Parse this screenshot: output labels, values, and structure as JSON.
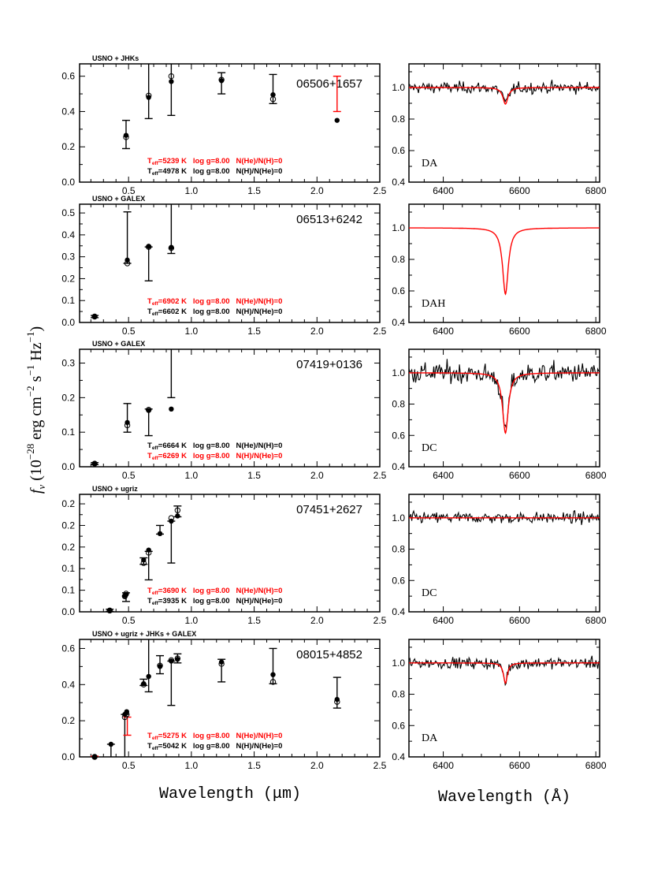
{
  "chart_data": {
    "type": "scatter",
    "colors": {
      "primary": "#000000",
      "highlight": "#ff0000"
    },
    "ylabel": {
      "f": "f",
      "nu": "ν",
      "text": "(10",
      "exp": "−28",
      "units": "erg cm",
      "cm_exp": "−2",
      "s": "s",
      "s_exp": "−1",
      "hz": "Hz",
      "hz_exp": "−1",
      "close": ")"
    },
    "sed_xlabel": "Wavelength (μm)",
    "spec_xlabel": "Wavelength (Å)",
    "sed_xlim": [
      0.11,
      2.5
    ],
    "sed_xticks": [
      "0.5",
      "1.0",
      "1.5",
      "2.0",
      "2.5"
    ],
    "sed_xtick_values": [
      0.5,
      1.0,
      1.5,
      2.0,
      2.5
    ],
    "spec_xlim": [
      6310,
      6810
    ],
    "spec_ylim": [
      0.4,
      1.15
    ],
    "spec_xticks": [
      "6400",
      "6600",
      "6800"
    ],
    "spec_xtick_values": [
      6400,
      6600,
      6800
    ],
    "spec_yticks": [
      "0.4",
      "0.6",
      "0.8",
      "1.0"
    ],
    "spec_ytick_values": [
      0.4,
      0.6,
      0.8,
      1.0
    ],
    "panels": [
      {
        "photometry": "USNO + JHKs",
        "object": "06506+1657",
        "ylim": [
          0,
          0.67
        ],
        "yticks": [
          "0.0",
          "0.2",
          "0.4",
          "0.6"
        ],
        "ytick_values": [
          0,
          0.2,
          0.4,
          0.6
        ],
        "fits": [
          {
            "teff_label": "T",
            "sub": "eff",
            "text": "=5239 K  log g=8.00  N(He)/N(H)=0",
            "color": "#ff0000"
          },
          {
            "teff_label": "T",
            "sub": "eff",
            "text": "=4978 K  log g=8.00  N(H)/N(He)=0",
            "color": "#000000"
          }
        ],
        "observed": [
          {
            "x": 0.48,
            "lo": 0.19,
            "hi": 0.35,
            "color": "#000000"
          },
          {
            "x": 0.66,
            "lo": 0.36,
            "hi": 0.67,
            "color": "#000000"
          },
          {
            "x": 0.84,
            "lo": 0.378,
            "hi": 0.67,
            "color": "#000000"
          },
          {
            "x": 1.24,
            "lo": 0.5,
            "hi": 0.62,
            "color": "#000000"
          },
          {
            "x": 1.65,
            "lo": 0.445,
            "hi": 0.61,
            "color": "#000000"
          },
          {
            "x": 2.16,
            "lo": 0.4,
            "hi": 0.6,
            "color": "#ff0000"
          }
        ],
        "model_filled": [
          [
            0.48,
            0.265
          ],
          [
            0.66,
            0.48
          ],
          [
            0.84,
            0.57
          ],
          [
            1.24,
            0.575
          ],
          [
            1.65,
            0.495
          ],
          [
            2.16,
            0.35
          ]
        ],
        "model_open": [
          [
            0.48,
            0.255
          ],
          [
            0.66,
            0.49
          ],
          [
            0.84,
            0.6
          ],
          [
            1.24,
            0.58
          ],
          [
            1.65,
            0.47
          ]
        ],
        "spectral_type": "DA",
        "spectrum": {
          "observed": true,
          "noise_rms": 0.03,
          "model_min": 0.895,
          "line_center": 6563,
          "line_width": 8
        }
      },
      {
        "photometry": "USNO + GALEX",
        "object": "06513+6242",
        "ylim": [
          0,
          0.54
        ],
        "yticks": [
          "0.0",
          "0.1",
          "0.2",
          "0.3",
          "0.4",
          "0.5"
        ],
        "ytick_values": [
          0,
          0.1,
          0.2,
          0.3,
          0.4,
          0.5
        ],
        "fits": [
          {
            "teff_label": "T",
            "sub": "eff",
            "text": "=6902 K  log g=8.00  N(He)/N(H)=0",
            "color": "#ff0000"
          },
          {
            "teff_label": "T",
            "sub": "eff",
            "text": "=6602 K  log g=8.00  N(H)/N(He)=0",
            "color": "#000000"
          }
        ],
        "observed": [
          {
            "x": 0.23,
            "lo": 0.022,
            "hi": 0.032,
            "color": "#000000"
          },
          {
            "x": 0.49,
            "lo": 0.27,
            "hi": 0.505,
            "color": "#000000"
          },
          {
            "x": 0.66,
            "lo": 0.19,
            "hi": 0.345,
            "color": "#000000"
          },
          {
            "x": 0.84,
            "lo": 0.315,
            "hi": 0.54,
            "color": "#000000"
          }
        ],
        "model_filled": [
          [
            0.23,
            0.027
          ],
          [
            0.49,
            0.285
          ],
          [
            0.66,
            0.348
          ],
          [
            0.84,
            0.343
          ]
        ],
        "model_open": [
          [
            0.23,
            0.027
          ],
          [
            0.49,
            0.27
          ],
          [
            0.66,
            0.345
          ],
          [
            0.84,
            0.34
          ]
        ],
        "spectral_type": "DAH",
        "spectrum": {
          "observed": false,
          "noise_rms": 0,
          "model_min": 0.58,
          "line_center": 6563,
          "line_width": 9
        }
      },
      {
        "photometry": "USNO + GALEX",
        "object": "07419+0136",
        "ylim": [
          0,
          0.34
        ],
        "yticks": [
          "0.0",
          "0.1",
          "0.2",
          "0.3"
        ],
        "ytick_values": [
          0,
          0.1,
          0.2,
          0.3
        ],
        "fits": [
          {
            "teff_label": "T",
            "sub": "eff",
            "text": "=6664 K  log g=8.00  N(He)/N(H)=0",
            "color": "#000000"
          },
          {
            "teff_label": "T",
            "sub": "eff",
            "text": "=6269 K  log g=8.00  N(H)/N(He)=0",
            "color": "#ff0000"
          }
        ],
        "observed": [
          {
            "x": 0.23,
            "lo": 0.006,
            "hi": 0.012,
            "color": "#000000"
          },
          {
            "x": 0.49,
            "lo": 0.1,
            "hi": 0.183,
            "color": "#000000"
          },
          {
            "x": 0.66,
            "lo": 0.09,
            "hi": 0.167,
            "color": "#000000"
          },
          {
            "x": 0.84,
            "lo": 0.2,
            "hi": 0.34,
            "color": "#000000"
          }
        ],
        "model_filled": [
          [
            0.23,
            0.009
          ],
          [
            0.49,
            0.128
          ],
          [
            0.66,
            0.163
          ],
          [
            0.84,
            0.167
          ]
        ],
        "model_open": [
          [
            0.23,
            0.009
          ],
          [
            0.49,
            0.12
          ],
          [
            0.66,
            0.165
          ]
        ],
        "spectral_type": "DC",
        "spectrum": {
          "observed": true,
          "noise_rms": 0.055,
          "model_min": 0.615,
          "line_center": 6563,
          "line_width": 9
        }
      },
      {
        "photometry": "USNO + ugriz",
        "object": "07451+2627",
        "ylim": [
          0,
          0.272
        ],
        "yticks": [
          "0.0",
          "0.1",
          "0.1",
          "0.2",
          "0.2",
          "0.2"
        ],
        "ytick_values": [
          0,
          0.05,
          0.1,
          0.15,
          0.2,
          0.25
        ],
        "fits": [
          {
            "teff_label": "T",
            "sub": "eff",
            "text": "=3690 K  log g=8.00  N(He)/N(H)=0",
            "color": "#ff0000"
          },
          {
            "teff_label": "T",
            "sub": "eff",
            "text": "=3935 K  log g=8.00  N(H)/N(He)=0",
            "color": "#000000"
          }
        ],
        "observed": [
          {
            "x": 0.35,
            "lo": 0.001,
            "hi": 0.006,
            "color": "#000000"
          },
          {
            "x": 0.48,
            "lo": 0.024,
            "hi": 0.044,
            "color": "#000000"
          },
          {
            "x": 0.62,
            "lo": 0.11,
            "hi": 0.125,
            "color": "#000000"
          },
          {
            "x": 0.66,
            "lo": 0.074,
            "hi": 0.14,
            "color": "#000000"
          },
          {
            "x": 0.75,
            "lo": 0.18,
            "hi": 0.2,
            "color": "#000000"
          },
          {
            "x": 0.84,
            "lo": 0.113,
            "hi": 0.21,
            "color": "#000000"
          },
          {
            "x": 0.89,
            "lo": 0.22,
            "hi": 0.245,
            "color": "#000000"
          }
        ],
        "model_filled": [
          [
            0.35,
            0.003
          ],
          [
            0.47,
            0.037
          ],
          [
            0.48,
            0.04
          ],
          [
            0.62,
            0.12
          ],
          [
            0.66,
            0.143
          ],
          [
            0.75,
            0.181
          ],
          [
            0.84,
            0.21
          ],
          [
            0.89,
            0.222
          ]
        ],
        "model_open": [
          [
            0.35,
            0.003
          ],
          [
            0.47,
            0.036
          ],
          [
            0.48,
            0.042
          ],
          [
            0.62,
            0.113
          ],
          [
            0.66,
            0.137
          ],
          [
            0.84,
            0.217
          ],
          [
            0.89,
            0.235
          ]
        ],
        "spectral_type": "DC",
        "spectrum": {
          "observed": true,
          "noise_rms": 0.03,
          "model_min": 1.0,
          "line_center": 6563,
          "line_width": 8
        }
      },
      {
        "photometry": "USNO + ugriz + JHKs + GALEX",
        "object": "08015+4852",
        "ylim": [
          0,
          0.65
        ],
        "yticks": [
          "0.0",
          "0.2",
          "0.4",
          "0.6"
        ],
        "ytick_values": [
          0,
          0.2,
          0.4,
          0.6
        ],
        "fits": [
          {
            "teff_label": "T",
            "sub": "eff",
            "text": "=5275 K  log g=8.00  N(He)/N(H)=0",
            "color": "#ff0000"
          },
          {
            "teff_label": "T",
            "sub": "eff",
            "text": "=5042 K  log g=8.00  N(H)/N(He)=0",
            "color": "#000000"
          }
        ],
        "observed": [
          {
            "x": 0.23,
            "lo": 0.0,
            "hi": 0.004,
            "color": "#ff0000"
          },
          {
            "x": 0.36,
            "lo": 0.0,
            "hi": 0.07,
            "color": "#000000"
          },
          {
            "x": 0.47,
            "lo": 0.0,
            "hi": 0.235,
            "color": "#000000"
          },
          {
            "x": 0.49,
            "lo": 0.12,
            "hi": 0.22,
            "color": "#ff0000"
          },
          {
            "x": 0.62,
            "lo": 0.395,
            "hi": 0.43,
            "color": "#000000"
          },
          {
            "x": 0.66,
            "lo": 0.36,
            "hi": 0.65,
            "color": "#000000"
          },
          {
            "x": 0.75,
            "lo": 0.46,
            "hi": 0.56,
            "color": "#000000"
          },
          {
            "x": 0.84,
            "lo": 0.285,
            "hi": 0.53,
            "color": "#000000"
          },
          {
            "x": 0.89,
            "lo": 0.52,
            "hi": 0.57,
            "color": "#000000"
          },
          {
            "x": 1.24,
            "lo": 0.415,
            "hi": 0.54,
            "color": "#000000"
          },
          {
            "x": 1.65,
            "lo": 0.405,
            "hi": 0.6,
            "color": "#000000"
          },
          {
            "x": 2.16,
            "lo": 0.27,
            "hi": 0.44,
            "color": "#000000"
          }
        ],
        "model_filled": [
          [
            0.23,
            0.0
          ],
          [
            0.36,
            0.07
          ],
          [
            0.47,
            0.235
          ],
          [
            0.485,
            0.25
          ],
          [
            0.62,
            0.405
          ],
          [
            0.66,
            0.445
          ],
          [
            0.75,
            0.5
          ],
          [
            0.84,
            0.53
          ],
          [
            0.89,
            0.54
          ],
          [
            1.24,
            0.525
          ],
          [
            1.65,
            0.455
          ],
          [
            2.16,
            0.318
          ]
        ],
        "model_open": [
          [
            0.23,
            0.0
          ],
          [
            0.47,
            0.22
          ],
          [
            0.485,
            0.235
          ],
          [
            0.62,
            0.4
          ],
          [
            0.75,
            0.505
          ],
          [
            0.84,
            0.535
          ],
          [
            0.89,
            0.545
          ],
          [
            1.24,
            0.515
          ],
          [
            1.65,
            0.415
          ],
          [
            2.16,
            0.305
          ]
        ],
        "spectral_type": "DA",
        "spectrum": {
          "observed": true,
          "noise_rms": 0.03,
          "model_min": 0.87,
          "line_center": 6563,
          "line_width": 6
        }
      }
    ]
  }
}
